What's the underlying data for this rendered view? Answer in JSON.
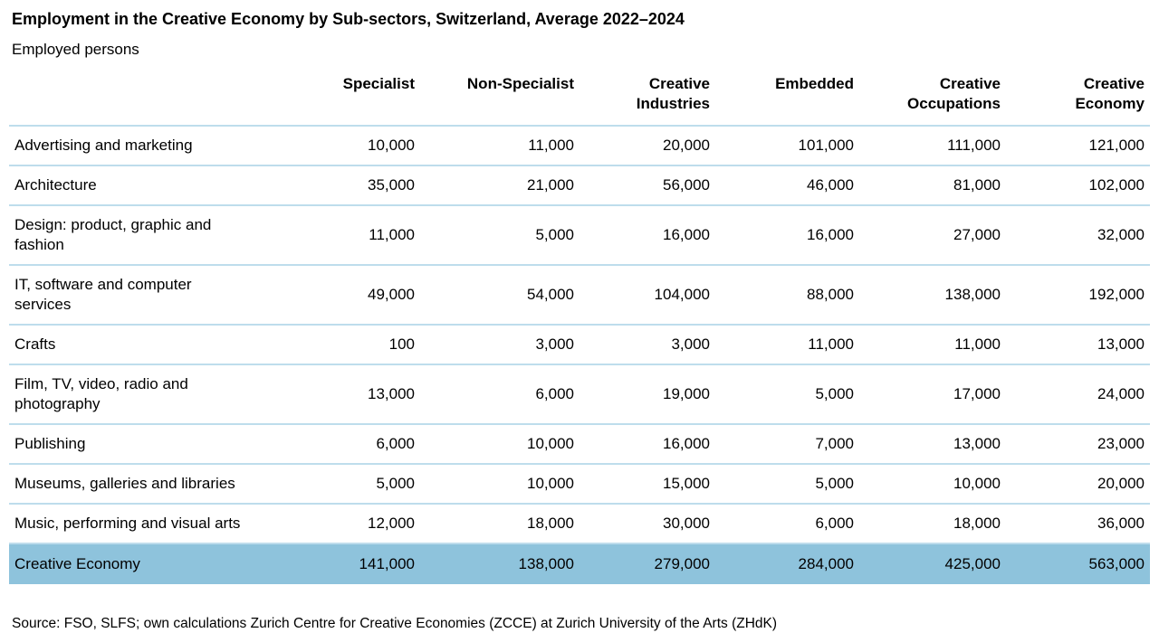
{
  "page": {
    "title": "Employment in the Creative Economy by Sub-sectors, Switzerland, Average 2022–2024",
    "subtitle": "Employed persons",
    "source": "Source: FSO, SLFS; own calculations Zurich Centre for Creative Economies (ZCCE) at Zurich University of the Arts (ZHdK)"
  },
  "colors": {
    "background": "#FFFFFF",
    "text": "#000000",
    "row_divider": "#BEDDEC",
    "total_row_bg": "#8EC3DC"
  },
  "chart_data": {
    "type": "table",
    "title": "Employment in the Creative Economy by Sub-sectors, Switzerland, Average 2022–2024",
    "unit": "Employed persons",
    "columns": [
      "Specialist",
      "Non-Specialist",
      "Creative\nIndustries",
      "Embedded",
      "Creative\nOccupations",
      "Creative\nEconomy"
    ],
    "rows": [
      {
        "label": "Advertising and marketing",
        "values": [
          "10,000",
          "11,000",
          "20,000",
          "101,000",
          "111,000",
          "121,000"
        ]
      },
      {
        "label": "Architecture",
        "values": [
          "35,000",
          "21,000",
          "56,000",
          "46,000",
          "81,000",
          "102,000"
        ]
      },
      {
        "label": "Design: product, graphic and\nfashion",
        "values": [
          "11,000",
          "5,000",
          "16,000",
          "16,000",
          "27,000",
          "32,000"
        ]
      },
      {
        "label": "IT, software and computer\nservices",
        "values": [
          "49,000",
          "54,000",
          "104,000",
          "88,000",
          "138,000",
          "192,000"
        ]
      },
      {
        "label": "Crafts",
        "values": [
          "100",
          "3,000",
          "3,000",
          "11,000",
          "11,000",
          "13,000"
        ]
      },
      {
        "label": "Film, TV, video, radio and\nphotography",
        "values": [
          "13,000",
          "6,000",
          "19,000",
          "5,000",
          "17,000",
          "24,000"
        ]
      },
      {
        "label": "Publishing",
        "values": [
          "6,000",
          "10,000",
          "16,000",
          "7,000",
          "13,000",
          "23,000"
        ]
      },
      {
        "label": "Museums, galleries and libraries",
        "values": [
          "5,000",
          "10,000",
          "15,000",
          "5,000",
          "10,000",
          "20,000"
        ]
      },
      {
        "label": "Music, performing and visual arts",
        "values": [
          "12,000",
          "18,000",
          "30,000",
          "6,000",
          "18,000",
          "36,000"
        ]
      },
      {
        "label": "Creative Economy",
        "values": [
          "141,000",
          "138,000",
          "279,000",
          "284,000",
          "425,000",
          "563,000"
        ],
        "is_total": true
      }
    ]
  }
}
